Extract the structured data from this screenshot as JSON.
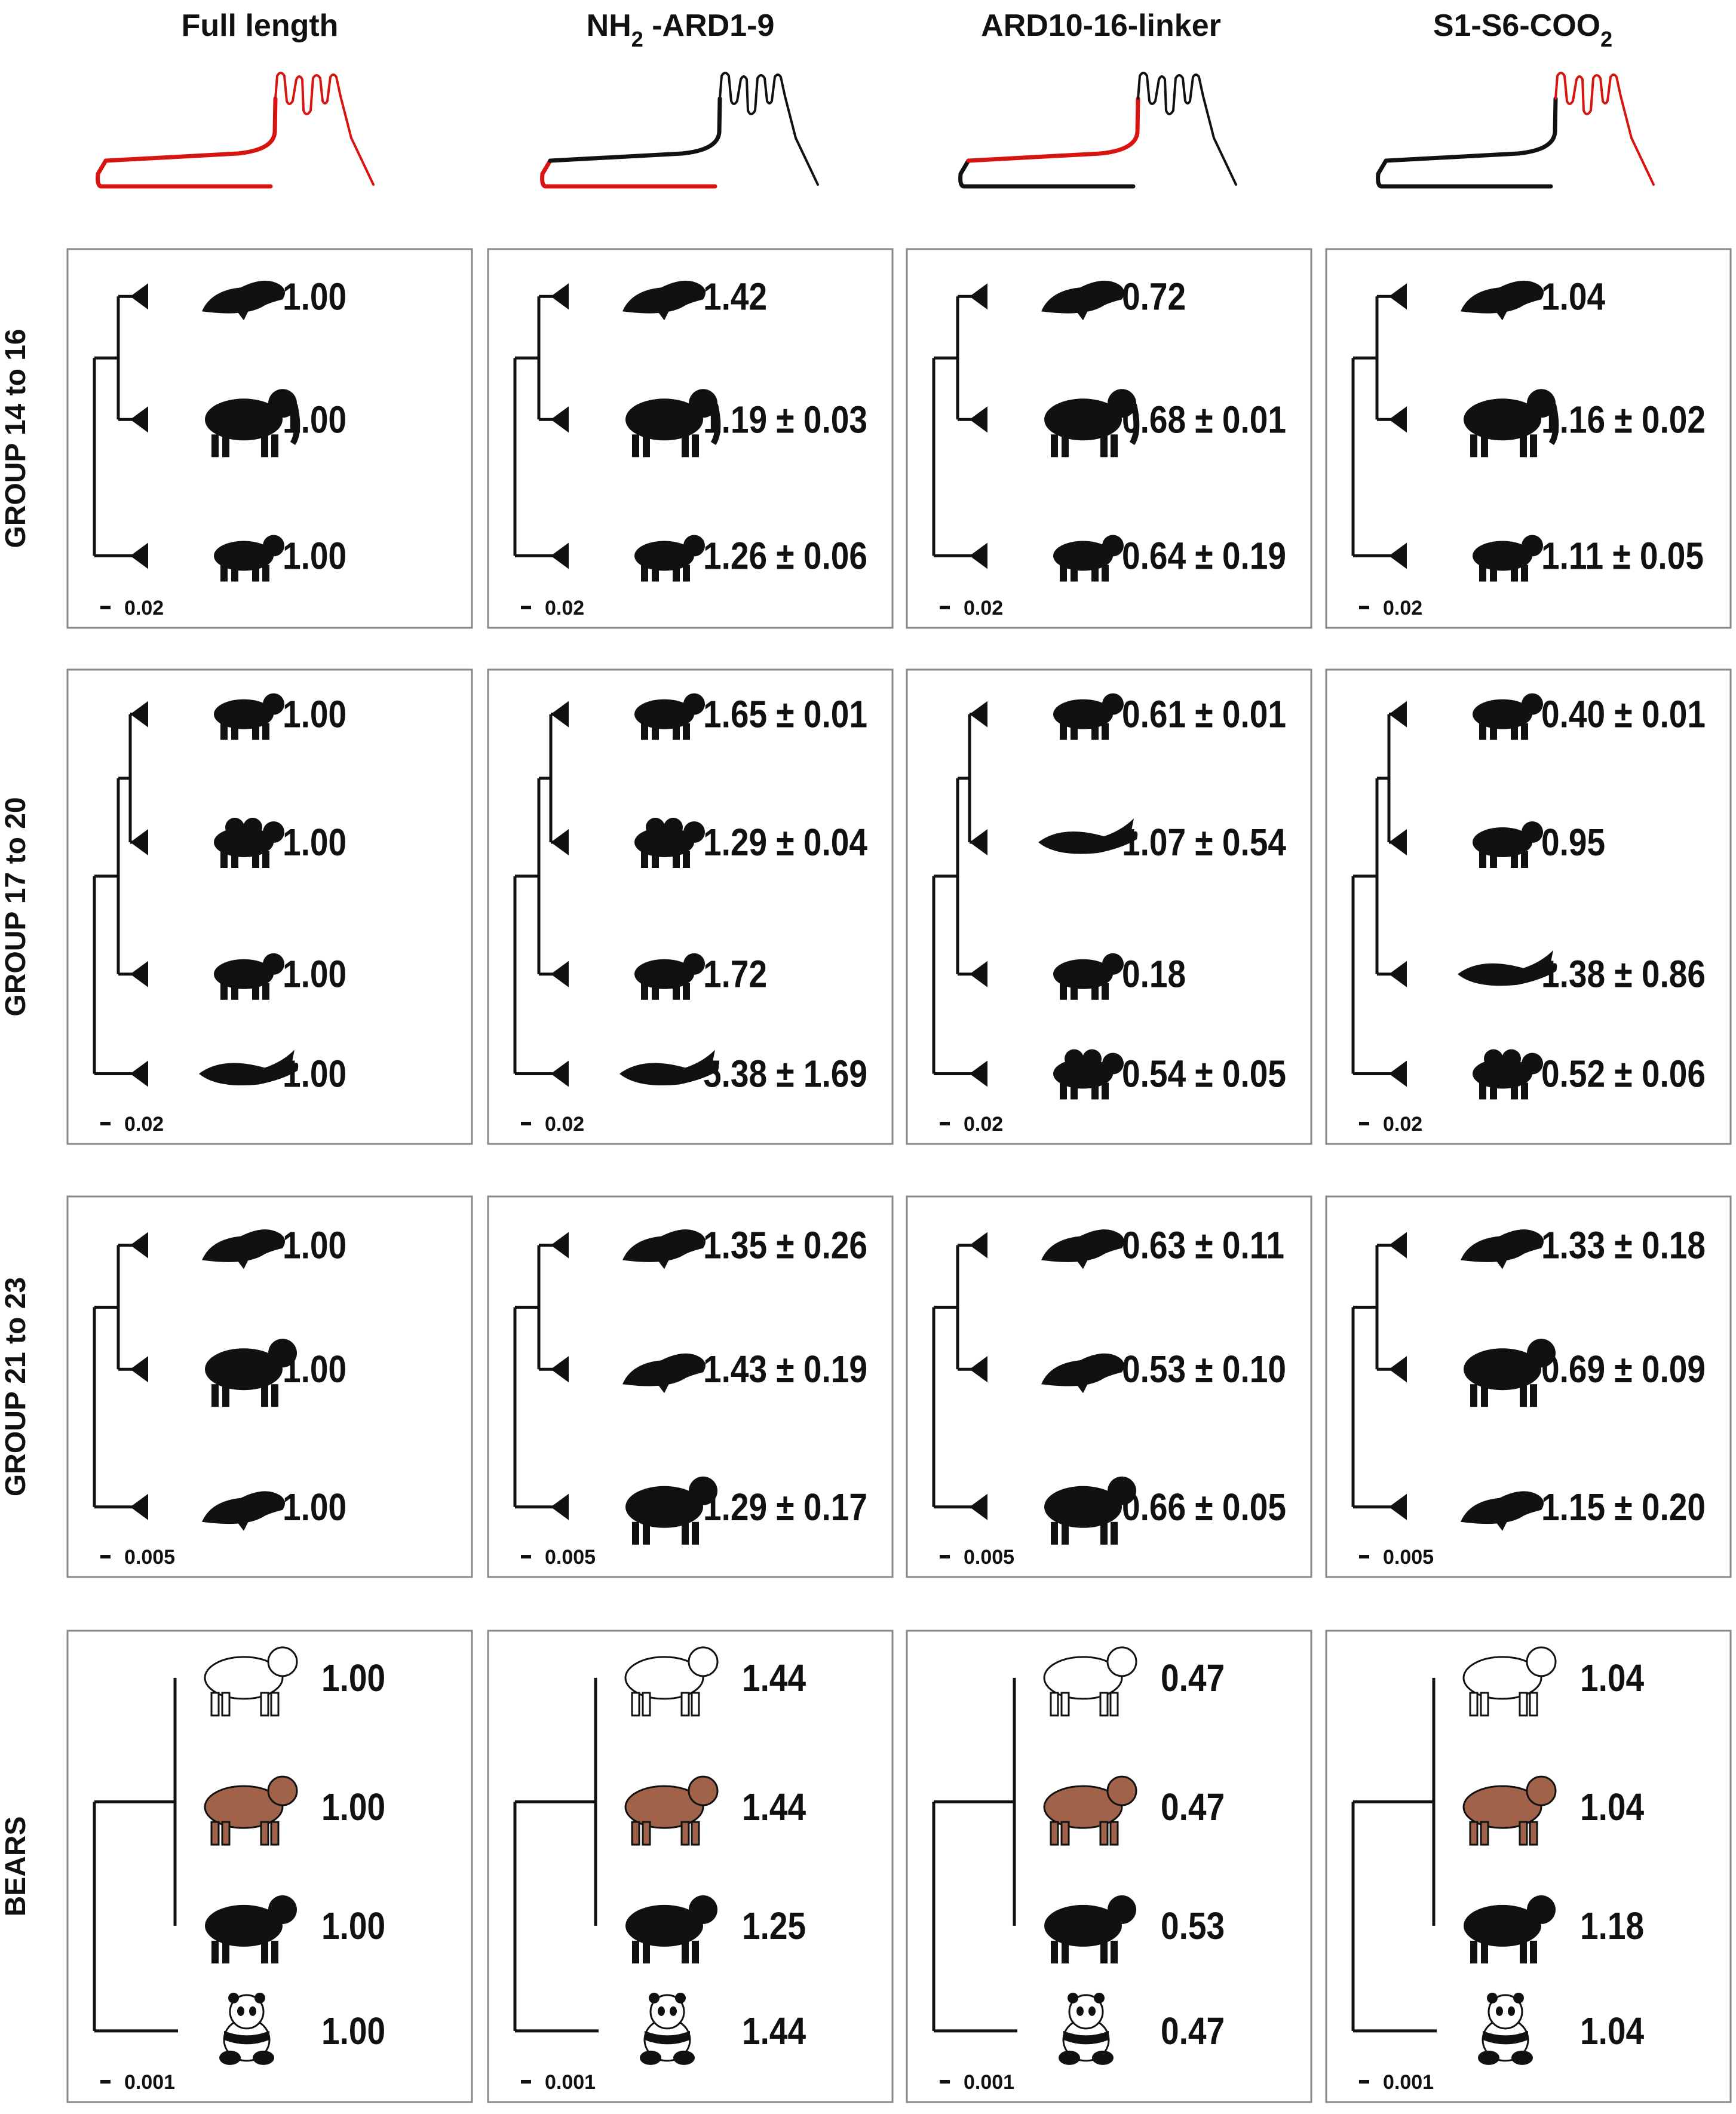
{
  "colors": {
    "highlight": "#d7140f",
    "base": "#111111",
    "brown_bear": "#a0634a",
    "polar_bear": "#ffffff",
    "silhouette": "#111111"
  },
  "columns": [
    {
      "title_main": "Full length",
      "title_sub": "",
      "title_rest": "",
      "highlighted_segments": [
        "N-terminus",
        "ARD10-16-linker",
        "S1-S6-COO2"
      ]
    },
    {
      "title_main": "NH",
      "title_sub": "2",
      "title_rest": " -ARD1-9",
      "highlighted_segments": [
        "N-terminus"
      ]
    },
    {
      "title_main": "ARD10-16-linker",
      "title_sub": "",
      "title_rest": "",
      "highlighted_segments": [
        "ARD10-16-linker"
      ]
    },
    {
      "title_main": "S1-S6-COO",
      "title_sub": "2",
      "title_rest": "",
      "highlighted_segments": [
        "S1-S6-COO2"
      ]
    }
  ],
  "rows": [
    {
      "label": "GROUP  14 to 16",
      "scale": "0.02",
      "panels": [
        [
          {
            "animal": "dugong",
            "value": "1.00"
          },
          {
            "animal": "elephant",
            "value": "1.00"
          },
          {
            "animal": "aardvark",
            "value": "1.00"
          }
        ],
        [
          {
            "animal": "dugong",
            "value": "1.42"
          },
          {
            "animal": "elephant",
            "value": "1.19 ± 0.03"
          },
          {
            "animal": "aardvark",
            "value": "1.26 ± 0.06"
          }
        ],
        [
          {
            "animal": "dugong",
            "value": "0.72"
          },
          {
            "animal": "elephant",
            "value": "0.68 ± 0.01"
          },
          {
            "animal": "aardvark",
            "value": "0.64 ± 0.19"
          }
        ],
        [
          {
            "animal": "dugong",
            "value": "1.04"
          },
          {
            "animal": "elephant",
            "value": "1.16 ± 0.02"
          },
          {
            "animal": "aardvark",
            "value": "1.11 ± 0.05"
          }
        ]
      ]
    },
    {
      "label": "GROUP  17 to 20",
      "scale": "0.02",
      "panels": [
        [
          {
            "animal": "pig",
            "value": "1.00"
          },
          {
            "animal": "camel",
            "value": "1.00"
          },
          {
            "animal": "hyrax",
            "value": "1.00"
          },
          {
            "animal": "whale",
            "value": "1.00"
          }
        ],
        [
          {
            "animal": "pig",
            "value": "1.65 ± 0.01"
          },
          {
            "animal": "camel",
            "value": "1.29 ± 0.04"
          },
          {
            "animal": "hyrax",
            "value": "1.72"
          },
          {
            "animal": "whale",
            "value": "5.38 ± 1.69"
          }
        ],
        [
          {
            "animal": "pig",
            "value": "0.61 ± 0.01"
          },
          {
            "animal": "whale",
            "value": "1.07 ± 0.54"
          },
          {
            "animal": "hyrax",
            "value": "0.18"
          },
          {
            "animal": "camel",
            "value": "0.54 ± 0.05"
          }
        ],
        [
          {
            "animal": "pig",
            "value": "0.40 ± 0.01"
          },
          {
            "animal": "hyrax",
            "value": "0.95"
          },
          {
            "animal": "whale",
            "value": "1.38 ± 0.86"
          },
          {
            "animal": "camel",
            "value": "0.52 ± 0.06"
          }
        ]
      ]
    },
    {
      "label": "GROUP  21 to 23",
      "scale": "0.005",
      "panels": [
        [
          {
            "animal": "sea-lion",
            "value": "1.00"
          },
          {
            "animal": "bear",
            "value": "1.00"
          },
          {
            "animal": "otter",
            "value": "1.00"
          }
        ],
        [
          {
            "animal": "sea-lion",
            "value": "1.35 ± 0.26"
          },
          {
            "animal": "otter",
            "value": "1.43 ± 0.19"
          },
          {
            "animal": "bear",
            "value": "1.29 ± 0.17"
          }
        ],
        [
          {
            "animal": "sea-lion",
            "value": "0.63 ± 0.11"
          },
          {
            "animal": "otter",
            "value": "0.53 ± 0.10"
          },
          {
            "animal": "bear",
            "value": "0.66 ± 0.05"
          }
        ],
        [
          {
            "animal": "sea-lion",
            "value": "1.33 ± 0.18"
          },
          {
            "animal": "bear",
            "value": "0.69 ± 0.09"
          },
          {
            "animal": "otter",
            "value": "1.15 ± 0.20"
          }
        ]
      ]
    },
    {
      "label": "BEARS",
      "scale": "0.001",
      "panels": [
        [
          {
            "animal": "polar-bear",
            "value": "1.00"
          },
          {
            "animal": "brown-bear",
            "value": "1.00"
          },
          {
            "animal": "black-bear",
            "value": "1.00"
          },
          {
            "animal": "panda",
            "value": "1.00"
          }
        ],
        [
          {
            "animal": "polar-bear",
            "value": "1.44"
          },
          {
            "animal": "brown-bear",
            "value": "1.44"
          },
          {
            "animal": "black-bear",
            "value": "1.25"
          },
          {
            "animal": "panda",
            "value": "1.44"
          }
        ],
        [
          {
            "animal": "polar-bear",
            "value": "0.47"
          },
          {
            "animal": "brown-bear",
            "value": "0.47"
          },
          {
            "animal": "black-bear",
            "value": "0.53"
          },
          {
            "animal": "panda",
            "value": "0.47"
          }
        ],
        [
          {
            "animal": "polar-bear",
            "value": "1.04"
          },
          {
            "animal": "brown-bear",
            "value": "1.04"
          },
          {
            "animal": "black-bear",
            "value": "1.18"
          },
          {
            "animal": "panda",
            "value": "1.04"
          }
        ]
      ]
    }
  ]
}
